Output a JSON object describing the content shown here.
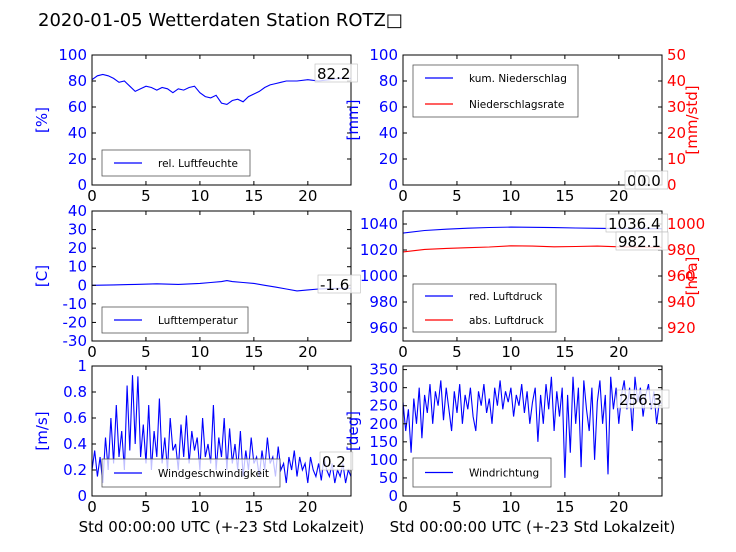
{
  "title": "2020-01-05 Wetterdaten Station ROTZ□",
  "colors": {
    "primary": "#0000ff",
    "secondary": "#ff0000",
    "axis": "#000000"
  },
  "chart_data": [
    {
      "type": "line",
      "ylabel": "[%]",
      "xlim": [
        0,
        24
      ],
      "ylim": [
        0,
        100
      ],
      "yticks": [
        0,
        20,
        40,
        60,
        80,
        100
      ],
      "xticks": [
        0,
        5,
        10,
        15,
        20
      ],
      "legend": {
        "position": "bottom-left",
        "entries": [
          "rel. Luftfeuchte"
        ]
      },
      "annotations": [
        {
          "text": "82.2"
        }
      ],
      "series": [
        {
          "name": "rel. Luftfeuchte",
          "axis": "left",
          "x": [
            0,
            0.5,
            1,
            1.5,
            2,
            2.5,
            3,
            3.5,
            4,
            4.5,
            5,
            5.5,
            6,
            6.5,
            7,
            7.5,
            8,
            8.5,
            9,
            9.5,
            10,
            10.5,
            11,
            11.5,
            12,
            12.5,
            13,
            13.5,
            14,
            14.5,
            15,
            15.5,
            16,
            16.5,
            17,
            17.5,
            18,
            19,
            20,
            21,
            22,
            23,
            24
          ],
          "y": [
            81,
            84,
            85,
            84,
            82,
            79,
            80,
            76,
            72,
            74,
            76,
            75,
            73,
            75,
            74,
            71,
            74,
            73,
            75,
            76,
            71,
            68,
            67,
            69,
            63,
            62,
            65,
            66,
            64,
            68,
            70,
            72,
            75,
            77,
            78,
            79,
            80,
            80,
            81,
            80,
            81,
            82,
            82
          ]
        }
      ]
    },
    {
      "type": "line",
      "ylabel": "[mm]",
      "ylabel_right": "[mm/std]",
      "xlim": [
        0,
        24
      ],
      "ylim": [
        0,
        100
      ],
      "ylim_right": [
        0,
        50
      ],
      "yticks": [
        0,
        20,
        40,
        60,
        80,
        100
      ],
      "yticks_right": [
        0,
        10,
        20,
        30,
        40,
        50
      ],
      "xticks": [
        0,
        5,
        10,
        15,
        20
      ],
      "legend": {
        "position": "top-left",
        "entries": [
          "kum. Niederschlag",
          "Niederschlagsrate"
        ]
      },
      "annotations": [
        {
          "text": "0.0"
        },
        {
          "text": "0.0"
        }
      ],
      "series": [
        {
          "name": "kum. Niederschlag",
          "axis": "left",
          "x": [
            0,
            24
          ],
          "y": [
            0,
            0
          ]
        },
        {
          "name": "Niederschlagsrate",
          "axis": "right",
          "x": [
            0,
            24
          ],
          "y": [
            0,
            0
          ]
        }
      ]
    },
    {
      "type": "line",
      "ylabel": "[C]",
      "xlim": [
        0,
        24
      ],
      "ylim": [
        -30,
        40
      ],
      "yticks": [
        -30,
        -20,
        -10,
        0,
        10,
        20,
        30,
        40
      ],
      "xticks": [
        0,
        5,
        10,
        15,
        20
      ],
      "legend": {
        "position": "bottom-left",
        "entries": [
          "Lufttemperatur"
        ]
      },
      "annotations": [
        {
          "text": "-1.6"
        }
      ],
      "series": [
        {
          "name": "Lufttemperatur",
          "axis": "left",
          "x": [
            0,
            2,
            4,
            6,
            8,
            10,
            11,
            12,
            12.5,
            13,
            14,
            15,
            16,
            17,
            18,
            19,
            20,
            21,
            22,
            23,
            24
          ],
          "y": [
            0,
            0.2,
            0.5,
            0.8,
            0.5,
            1,
            1.5,
            2,
            2.5,
            2,
            1.5,
            1,
            0,
            -1,
            -2,
            -3,
            -2.5,
            -2,
            -1.8,
            -1.6,
            -1.6
          ]
        }
      ]
    },
    {
      "type": "line",
      "ylabel_right": "[hPa]",
      "xlim": [
        0,
        24
      ],
      "ylim": [
        950,
        1050
      ],
      "ylim_right": [
        910,
        1010
      ],
      "yticks": [
        960,
        980,
        1000,
        1020,
        1040
      ],
      "yticks_right": [
        920,
        940,
        960,
        980,
        1000
      ],
      "xticks": [
        0,
        5,
        10,
        15,
        20
      ],
      "legend": {
        "position": "bottom-left",
        "entries": [
          "red. Luftdruck",
          "abs. Luftdruck"
        ]
      },
      "annotations": [
        {
          "text": "1036.4"
        },
        {
          "text": "982.1"
        }
      ],
      "series": [
        {
          "name": "red. Luftdruck",
          "axis": "left",
          "x": [
            0,
            2,
            4,
            6,
            8,
            10,
            12,
            14,
            16,
            18,
            20,
            22,
            24
          ],
          "y": [
            1033,
            1035,
            1036,
            1036.8,
            1037.3,
            1037.6,
            1037.5,
            1037.2,
            1036.9,
            1036.7,
            1036.5,
            1036.4,
            1036.4
          ]
        },
        {
          "name": "abs. Luftdruck",
          "axis": "right",
          "x": [
            0,
            2,
            4,
            6,
            8,
            10,
            12,
            14,
            16,
            18,
            20,
            22,
            24
          ],
          "y": [
            978.5,
            980.5,
            981.2,
            981.8,
            982.3,
            983.2,
            983,
            982.5,
            982.7,
            983,
            982.5,
            982.2,
            982.1
          ]
        }
      ]
    },
    {
      "type": "line",
      "ylabel": "[m/s]",
      "xlabel": "Std 00:00:00 UTC (+-23 Std Lokalzeit)",
      "xlim": [
        0,
        24
      ],
      "ylim": [
        0,
        1
      ],
      "yticks": [
        0,
        0.2,
        0.4,
        0.6,
        0.8,
        1
      ],
      "xticks": [
        0,
        5,
        10,
        15,
        20
      ],
      "legend": {
        "position": "bottom-left",
        "entries": [
          "Windgeschwindigkeit"
        ]
      },
      "annotations": [
        {
          "text": "0.2"
        }
      ],
      "series": [
        {
          "name": "Windgeschwindigkeit",
          "axis": "left",
          "x": [
            0,
            0.25,
            0.5,
            0.75,
            1,
            1.25,
            1.5,
            1.75,
            2,
            2.25,
            2.5,
            2.75,
            3,
            3.25,
            3.5,
            3.75,
            4,
            4.25,
            4.5,
            4.75,
            5,
            5.25,
            5.5,
            5.75,
            6,
            6.25,
            6.5,
            6.75,
            7,
            7.25,
            7.5,
            7.75,
            8,
            8.25,
            8.5,
            8.75,
            9,
            9.25,
            9.5,
            9.75,
            10,
            10.25,
            10.5,
            10.75,
            11,
            11.25,
            11.5,
            11.75,
            12,
            12.25,
            12.5,
            12.75,
            13,
            13.25,
            13.5,
            13.75,
            14,
            14.25,
            14.5,
            14.75,
            15,
            15.25,
            15.5,
            15.75,
            16,
            16.25,
            16.5,
            16.75,
            17,
            17.25,
            17.5,
            17.75,
            18,
            18.25,
            18.5,
            18.75,
            19,
            19.25,
            19.5,
            19.75,
            20,
            20.25,
            20.5,
            20.75,
            21,
            21.25,
            21.5,
            21.75,
            22,
            22.25,
            22.5,
            22.75,
            23,
            23.25,
            23.5,
            23.75,
            24
          ],
          "y": [
            0.2,
            0.35,
            0.15,
            0.3,
            0.1,
            0.45,
            0.2,
            0.6,
            0.25,
            0.7,
            0.3,
            0.5,
            0.2,
            0.85,
            0.35,
            0.93,
            0.4,
            0.92,
            0.3,
            0.55,
            0.25,
            0.7,
            0.2,
            0.5,
            0.3,
            0.75,
            0.25,
            0.45,
            0.2,
            0.6,
            0.35,
            0.4,
            0.2,
            0.55,
            0.3,
            0.62,
            0.25,
            0.5,
            0.35,
            0.45,
            0.2,
            0.6,
            0.3,
            0.4,
            0.25,
            0.7,
            0.2,
            0.45,
            0.3,
            0.6,
            0.2,
            0.52,
            0.25,
            0.4,
            0.2,
            0.5,
            0.15,
            0.35,
            0.2,
            0.45,
            0.25,
            0.3,
            0.15,
            0.35,
            0.2,
            0.45,
            0.25,
            0.3,
            0.15,
            0.38,
            0.2,
            0.25,
            0.1,
            0.3,
            0.2,
            0.35,
            0.15,
            0.3,
            0.2,
            0.25,
            0.1,
            0.3,
            0.2,
            0.15,
            0.25,
            0.12,
            0.3,
            0.2,
            0.15,
            0.25,
            0.1,
            0.2,
            0.15,
            0.25,
            0.1,
            0.2,
            0.15
          ]
        }
      ]
    },
    {
      "type": "line",
      "ylabel": "[deg]",
      "xlabel": "Std 00:00:00 UTC (+-23 Std Lokalzeit)",
      "xlim": [
        0,
        24
      ],
      "ylim": [
        0,
        360
      ],
      "yticks": [
        0,
        50,
        100,
        150,
        200,
        250,
        300,
        350
      ],
      "xticks": [
        0,
        5,
        10,
        15,
        20
      ],
      "legend": {
        "position": "bottom-left",
        "entries": [
          "Windrichtung"
        ]
      },
      "annotations": [
        {
          "text": "256.3"
        }
      ],
      "series": [
        {
          "name": "Windrichtung",
          "axis": "left",
          "x": [
            0,
            0.25,
            0.5,
            0.75,
            1,
            1.25,
            1.5,
            1.75,
            2,
            2.25,
            2.5,
            2.75,
            3,
            3.25,
            3.5,
            3.75,
            4,
            4.25,
            4.5,
            4.75,
            5,
            5.25,
            5.5,
            5.75,
            6,
            6.25,
            6.5,
            6.75,
            7,
            7.25,
            7.5,
            7.75,
            8,
            8.25,
            8.5,
            8.75,
            9,
            9.25,
            9.5,
            9.75,
            10,
            10.25,
            10.5,
            10.75,
            11,
            11.25,
            11.5,
            11.75,
            12,
            12.25,
            12.5,
            12.75,
            13,
            13.25,
            13.5,
            13.75,
            14,
            14.25,
            14.5,
            14.75,
            15,
            15.25,
            15.5,
            15.75,
            16,
            16.25,
            16.5,
            16.75,
            17,
            17.25,
            17.5,
            17.75,
            18,
            18.25,
            18.5,
            18.75,
            19,
            19.25,
            19.5,
            19.75,
            20,
            20.25,
            20.5,
            20.75,
            21,
            21.25,
            21.5,
            21.75,
            22,
            22.25,
            22.5,
            22.75,
            23,
            23.25,
            23.5,
            23.75,
            24
          ],
          "y": [
            260,
            180,
            240,
            120,
            270,
            200,
            300,
            160,
            280,
            230,
            310,
            200,
            290,
            250,
            320,
            210,
            300,
            240,
            180,
            290,
            230,
            310,
            200,
            280,
            240,
            300,
            220,
            180,
            290,
            250,
            310,
            230,
            270,
            200,
            300,
            250,
            320,
            240,
            290,
            260,
            300,
            220,
            280,
            250,
            310,
            230,
            290,
            200,
            260,
            300,
            150,
            280,
            200,
            310,
            240,
            330,
            180,
            290,
            220,
            300,
            50,
            280,
            120,
            330,
            200,
            300,
            80,
            320,
            240,
            180,
            300,
            100,
            260,
            320,
            200,
            280,
            60,
            330,
            240,
            300,
            200,
            280,
            320,
            240,
            300,
            180,
            330,
            260,
            300,
            220,
            280,
            310,
            240,
            290,
            200,
            260,
            256
          ]
        }
      ]
    }
  ]
}
